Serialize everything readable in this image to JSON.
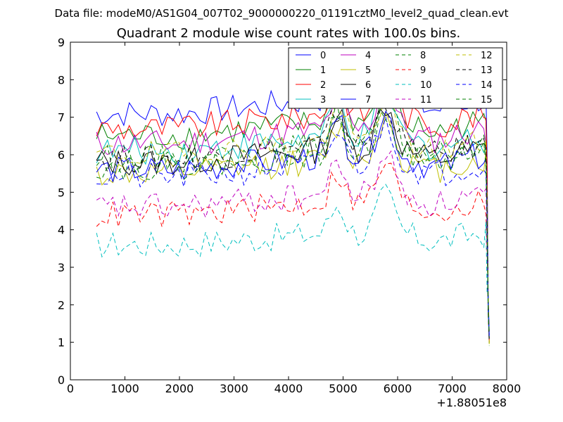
{
  "chart_data": {
    "type": "line",
    "supertitle": "Data file: modeM0/AS1G04_007T02_9000000220_01191cztM0_level2_quad_clean.evt",
    "title": "Quadrant 2 module wise count rates with 100.0s bins.",
    "xlabel": "",
    "ylabel": "",
    "x_offset_label": "+1.88051e8",
    "xlim": [
      0,
      8000
    ],
    "ylim": [
      0,
      9
    ],
    "x_ticks": [
      0,
      1000,
      2000,
      3000,
      4000,
      5000,
      6000,
      7000,
      8000
    ],
    "y_ticks": [
      0,
      1,
      2,
      3,
      4,
      5,
      6,
      7,
      8,
      9
    ],
    "grid": false,
    "legend_position": "top-right",
    "x": [
      480,
      580,
      680,
      780,
      880,
      980,
      1080,
      1180,
      1280,
      1380,
      1480,
      1580,
      1680,
      1780,
      1880,
      1980,
      2080,
      2180,
      2280,
      2380,
      2480,
      2580,
      2680,
      2780,
      2880,
      2980,
      3080,
      3180,
      3280,
      3380,
      3480,
      3580,
      3680,
      3780,
      3880,
      3980,
      4080,
      4180,
      4280,
      4380,
      4480,
      4580,
      4680,
      4780,
      4880,
      4980,
      5080,
      5180,
      5280,
      5380,
      5480,
      5580,
      5680,
      5780,
      5880,
      5980,
      6080,
      6180,
      6280,
      6380,
      6480,
      6580,
      6680,
      6780,
      6880,
      6980,
      7080,
      7180,
      7280,
      7380,
      7480,
      7580,
      7620,
      7640,
      7660,
      7680
    ],
    "series": [
      {
        "name": "0",
        "color": "#0000ff",
        "dash": "",
        "base": 7.1
      },
      {
        "name": "1",
        "color": "#008000",
        "dash": "",
        "base": 6.5
      },
      {
        "name": "2",
        "color": "#ff0000",
        "dash": "",
        "base": 6.7
      },
      {
        "name": "3",
        "color": "#00bfbf",
        "dash": "",
        "base": 6.1
      },
      {
        "name": "4",
        "color": "#bf00bf",
        "dash": "",
        "base": 6.3
      },
      {
        "name": "5",
        "color": "#bfbf00",
        "dash": "",
        "base": 5.5
      },
      {
        "name": "6",
        "color": "#000000",
        "dash": "",
        "base": 5.8
      },
      {
        "name": "7",
        "color": "#0000ff",
        "dash": "",
        "base": 5.6
      },
      {
        "name": "8",
        "color": "#008000",
        "dash": "6,4",
        "base": 5.9
      },
      {
        "name": "9",
        "color": "#ff0000",
        "dash": "6,4",
        "base": 4.4
      },
      {
        "name": "10",
        "color": "#00bfbf",
        "dash": "6,4",
        "base": 3.6
      },
      {
        "name": "11",
        "color": "#bf00bf",
        "dash": "6,4",
        "base": 4.6
      },
      {
        "name": "12",
        "color": "#bfbf00",
        "dash": "6,4",
        "base": 6.0
      },
      {
        "name": "13",
        "color": "#000000",
        "dash": "6,4",
        "base": 5.9
      },
      {
        "name": "14",
        "color": "#0000ff",
        "dash": "6,4",
        "base": 5.4
      },
      {
        "name": "15",
        "color": "#008000",
        "dash": "6,4",
        "base": 5.7
      }
    ]
  }
}
